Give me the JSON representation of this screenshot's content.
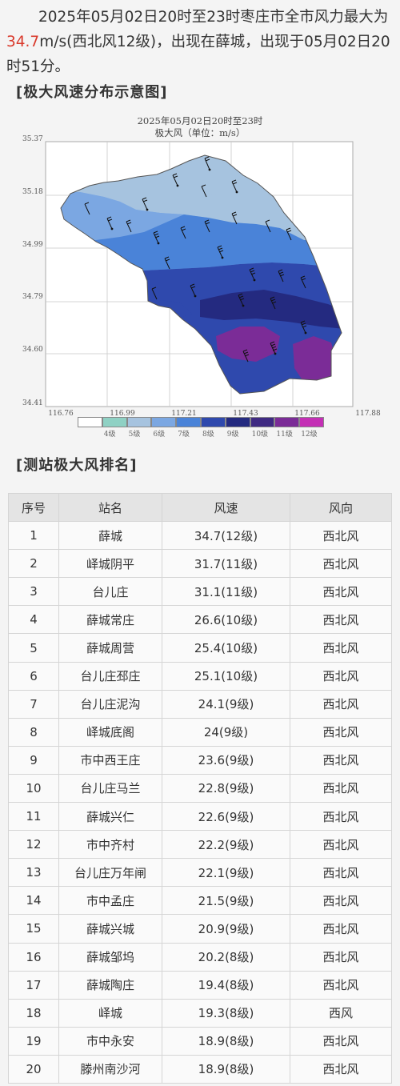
{
  "intro": {
    "line1": "2025年05月02日20时至23时枣庄市全市风力最大为",
    "highlight": "34.7",
    "line2": "m/s(西北风12级)，出现在薛城，出现于05月02日20时51分。"
  },
  "section_map_title": "[极大风速分布示意图]",
  "map": {
    "title_line1": "2025年05月02日20时至23时",
    "title_line2": "极大风（单位：m/s）",
    "lat_ticks": [
      "35.37",
      "35.18",
      "34.99",
      "34.79",
      "34.60",
      "34.41"
    ],
    "lon_ticks": [
      "116.76",
      "116.99",
      "117.21",
      "117.43",
      "117.66",
      "117.88"
    ],
    "legend": [
      {
        "label": "",
        "color": "#ffffff"
      },
      {
        "label": "4级",
        "color": "#8fd1c4"
      },
      {
        "label": "5级",
        "color": "#a6c3df"
      },
      {
        "label": "6级",
        "color": "#7ba7e2"
      },
      {
        "label": "7级",
        "color": "#4a83d8"
      },
      {
        "label": "8级",
        "color": "#2f49ad"
      },
      {
        "label": "9级",
        "color": "#242a80"
      },
      {
        "label": "10级",
        "color": "#3f2a82"
      },
      {
        "label": "11级",
        "color": "#7b2c97"
      },
      {
        "label": "12级",
        "color": "#c42fb5"
      }
    ]
  },
  "section_table_title": "[测站极大风排名]",
  "table": {
    "headers": [
      "序号",
      "站名",
      "风速",
      "风向"
    ],
    "rows": [
      [
        "1",
        "薛城",
        "34.7(12级)",
        "西北风"
      ],
      [
        "2",
        "峄城阴平",
        "31.7(11级)",
        "西北风"
      ],
      [
        "3",
        "台儿庄",
        "31.1(11级)",
        "西北风"
      ],
      [
        "4",
        "薛城常庄",
        "26.6(10级)",
        "西北风"
      ],
      [
        "5",
        "薛城周营",
        "25.4(10级)",
        "西北风"
      ],
      [
        "6",
        "台儿庄邳庄",
        "25.1(10级)",
        "西北风"
      ],
      [
        "7",
        "台儿庄泥沟",
        "24.1(9级)",
        "西北风"
      ],
      [
        "8",
        "峄城底阁",
        "24(9级)",
        "西北风"
      ],
      [
        "9",
        "市中西王庄",
        "23.6(9级)",
        "西北风"
      ],
      [
        "10",
        "台儿庄马兰",
        "22.8(9级)",
        "西北风"
      ],
      [
        "11",
        "薛城兴仁",
        "22.6(9级)",
        "西北风"
      ],
      [
        "12",
        "市中齐村",
        "22.2(9级)",
        "西北风"
      ],
      [
        "13",
        "台儿庄万年闸",
        "22.1(9级)",
        "西北风"
      ],
      [
        "14",
        "市中孟庄",
        "21.5(9级)",
        "西北风"
      ],
      [
        "15",
        "薛城兴城",
        "20.9(9级)",
        "西北风"
      ],
      [
        "16",
        "薛城邹坞",
        "20.2(8级)",
        "西北风"
      ],
      [
        "17",
        "薛城陶庄",
        "19.4(8级)",
        "西北风"
      ],
      [
        "18",
        "峄城",
        "19.3(8级)",
        "西风"
      ],
      [
        "19",
        "市中永安",
        "18.9(8级)",
        "西北风"
      ],
      [
        "20",
        "滕州南沙河",
        "18.9(8级)",
        "西北风"
      ]
    ]
  }
}
